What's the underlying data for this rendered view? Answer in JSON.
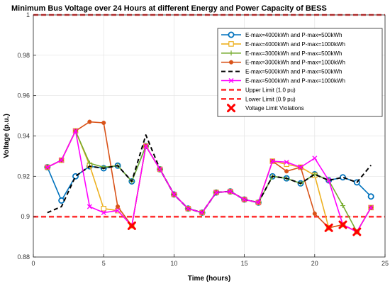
{
  "chart_data": {
    "type": "line",
    "title": "Minimum Bus Voltage over 24 Hours at different Energy and Power Capacity of BESS",
    "xlabel": "Time (hours)",
    "ylabel": "Voltage (p.u.)",
    "xlim": [
      0,
      25
    ],
    "ylim": [
      0.88,
      1.0
    ],
    "xticks": [
      0,
      5,
      10,
      15,
      20,
      25
    ],
    "yticks": [
      0.88,
      0.9,
      0.92,
      0.94,
      0.96,
      0.98,
      1.0
    ],
    "xtick_labels": [
      "0",
      "5",
      "10",
      "15",
      "20",
      "25"
    ],
    "ytick_labels": [
      "0.88",
      "0.9",
      "0.92",
      "0.94",
      "0.96",
      "0.98",
      "1"
    ],
    "grid": true,
    "legend_position": "top-right",
    "x": [
      1,
      2,
      3,
      4,
      5,
      6,
      7,
      8,
      9,
      10,
      11,
      12,
      13,
      14,
      15,
      16,
      17,
      18,
      19,
      20,
      21,
      22,
      23,
      24
    ],
    "series": [
      {
        "name": "E-max=4000kWh and P-max=500kWh",
        "color": "#0072BD",
        "marker": "circle",
        "dash": "solid",
        "values": [
          0.9245,
          0.908,
          0.92,
          0.925,
          0.924,
          0.9253,
          0.9175,
          0.935,
          0.9235,
          0.911,
          0.904,
          0.902,
          0.912,
          0.9125,
          0.9085,
          0.907,
          0.92,
          0.919,
          0.9165,
          0.921,
          0.918,
          0.9195,
          0.917,
          0.91
        ]
      },
      {
        "name": "E-max=4000kWh and P-max=1000kWh",
        "color": "#EDB120",
        "marker": "square",
        "dash": "solid",
        "values": [
          0.9245,
          0.928,
          0.9425,
          0.9255,
          0.904,
          0.903,
          0.8955,
          0.935,
          0.9235,
          0.911,
          0.904,
          0.902,
          0.912,
          0.9125,
          0.9085,
          0.907,
          0.9275,
          0.926,
          0.9245,
          0.9205,
          0.8945,
          0.896,
          0.8925,
          0.9045
        ]
      },
      {
        "name": "E-max=3000kWh and P-max=500kWh",
        "color": "#77AC30",
        "marker": "plus",
        "dash": "solid",
        "values": [
          0.9245,
          0.928,
          0.9425,
          0.9265,
          0.9245,
          0.9253,
          0.9175,
          0.935,
          0.9235,
          0.911,
          0.904,
          0.902,
          0.912,
          0.9125,
          0.9085,
          0.907,
          0.92,
          0.919,
          0.9165,
          0.921,
          0.918,
          0.9055,
          0.8925,
          0.9045
        ]
      },
      {
        "name": "E-max=3000kWh and P-max=1000kWh",
        "color": "#D95319",
        "marker": "dot",
        "dash": "solid",
        "values": [
          0.9245,
          0.928,
          0.9425,
          0.947,
          0.9465,
          0.905,
          0.8955,
          0.935,
          0.9235,
          0.911,
          0.904,
          0.902,
          0.912,
          0.9125,
          0.9085,
          0.907,
          0.9275,
          0.9225,
          0.9245,
          0.9015,
          0.8945,
          0.896,
          0.8925,
          0.9045
        ]
      },
      {
        "name": "E-max=5000kWh and P-max=500kWh",
        "color": "#000000",
        "marker": "none",
        "dash": "dashed",
        "values": [
          0.902,
          0.905,
          0.92,
          0.925,
          0.924,
          0.9253,
          0.9175,
          0.9405,
          0.9235,
          0.911,
          0.904,
          0.902,
          0.912,
          0.9125,
          0.9085,
          0.907,
          0.92,
          0.919,
          0.9165,
          0.921,
          0.918,
          0.9195,
          0.917,
          0.9255
        ]
      },
      {
        "name": "E-max=5000kWh and P-max=1000kWh",
        "color": "#FF00FF",
        "marker": "x",
        "dash": "solid",
        "values": [
          0.9245,
          0.928,
          0.9425,
          0.905,
          0.902,
          0.903,
          0.8955,
          0.935,
          0.9235,
          0.911,
          0.904,
          0.902,
          0.912,
          0.9125,
          0.9085,
          0.907,
          0.9275,
          0.927,
          0.9245,
          0.929,
          0.918,
          0.896,
          0.8925,
          0.9045
        ]
      }
    ],
    "reference_lines": [
      {
        "name": "Upper Limit (1.0 pu)",
        "value": 1.0,
        "color": "#FF3333"
      },
      {
        "name": "Lower Limit (0.9 pu)",
        "value": 0.9,
        "color": "#FF3333"
      }
    ],
    "violations": {
      "name": "Voltage Limit Violations",
      "color": "#FF0000",
      "points": [
        {
          "x": 7,
          "y": 0.8955
        },
        {
          "x": 21,
          "y": 0.8945
        },
        {
          "x": 22,
          "y": 0.896
        },
        {
          "x": 23,
          "y": 0.8925
        }
      ]
    }
  }
}
